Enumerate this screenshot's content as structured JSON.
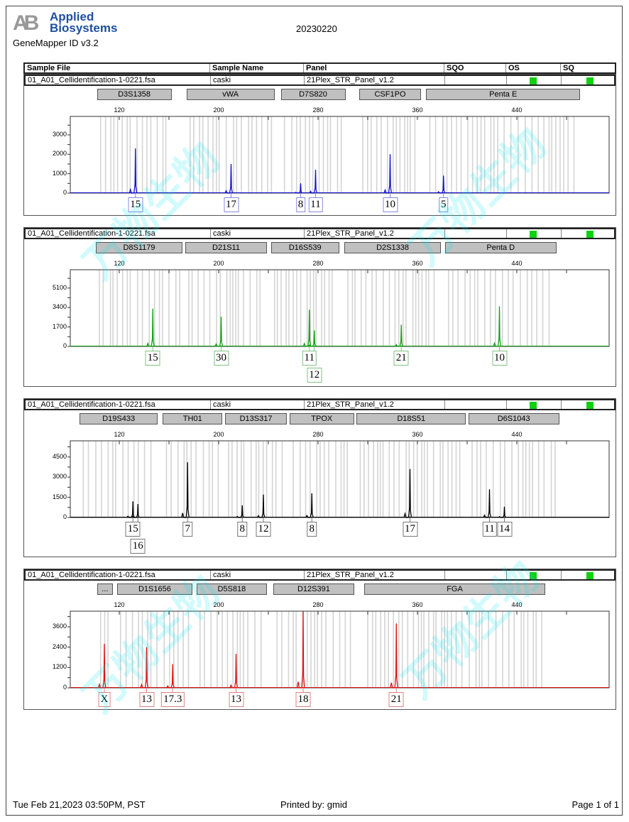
{
  "header": {
    "brand": "Applied Biosystems",
    "software": "GeneMapper ID v3.2",
    "run_name": "20230220",
    "watermark": "万物生物"
  },
  "table_headers": [
    "Sample File",
    "Sample Name",
    "Panel",
    "SQO",
    "OS",
    "SQ"
  ],
  "sample": {
    "file": "01_A01_Cellidentification-1-0221.fsa",
    "name": "caski",
    "panel": "21Plex_STR_Panel_v1.2",
    "os_color": "#10d010",
    "sq_color": "#10d010"
  },
  "footer": {
    "datetime": "Tue Feb 21,2023 03:50PM, PST",
    "printed_by": "Printed by: gmid",
    "page": "Page 1 of 1"
  },
  "chart_data": [
    {
      "type": "line",
      "dye_color": "#1010d0",
      "label_border": "#8888e0",
      "xlim": [
        81,
        514
      ],
      "x_ticks": [
        120,
        200,
        280,
        360,
        440
      ],
      "ylim": [
        0,
        3950
      ],
      "y_ticks": [
        0,
        1000,
        2000,
        3000
      ],
      "loci": [
        {
          "name": "D3S1358",
          "range": [
            102,
            162
          ]
        },
        {
          "name": "vWA",
          "range": [
            174,
            245
          ]
        },
        {
          "name": "D7S820",
          "range": [
            250,
            302
          ]
        },
        {
          "name": "CSF1PO",
          "range": [
            313,
            363
          ]
        },
        {
          "name": "Penta E",
          "range": [
            367,
            491
          ]
        }
      ],
      "peaks": [
        {
          "bp": 133,
          "rfu": 2300,
          "allele": "15"
        },
        {
          "bp": 210,
          "rfu": 1500,
          "allele": "17"
        },
        {
          "bp": 266,
          "rfu": 500,
          "allele": "8"
        },
        {
          "bp": 278,
          "rfu": 1200,
          "allele": "11"
        },
        {
          "bp": 338,
          "rfu": 2000,
          "allele": "10"
        },
        {
          "bp": 381,
          "rfu": 900,
          "allele": "5"
        }
      ]
    },
    {
      "type": "line",
      "dye_color": "#10a010",
      "label_border": "#80c080",
      "xlim": [
        81,
        514
      ],
      "x_ticks": [
        120,
        200,
        280,
        360,
        440
      ],
      "ylim": [
        0,
        6700
      ],
      "y_ticks": [
        0,
        1700,
        3400,
        5100
      ],
      "loci": [
        {
          "name": "D8S1179",
          "range": [
            101,
            171
          ]
        },
        {
          "name": "D21S11",
          "range": [
            173,
            239
          ]
        },
        {
          "name": "D16S539",
          "range": [
            242,
            297
          ]
        },
        {
          "name": "D2S1338",
          "range": [
            301,
            379
          ]
        },
        {
          "name": "Penta D",
          "range": [
            382,
            472
          ]
        }
      ],
      "peaks": [
        {
          "bp": 147,
          "rfu": 3300,
          "allele": "15"
        },
        {
          "bp": 202,
          "rfu": 2600,
          "allele": "30"
        },
        {
          "bp": 273,
          "rfu": 3200,
          "allele": "11"
        },
        {
          "bp": 277,
          "rfu": 1400,
          "allele": "12"
        },
        {
          "bp": 347,
          "rfu": 1900,
          "allele": "21"
        },
        {
          "bp": 426,
          "rfu": 3500,
          "allele": "10"
        }
      ]
    },
    {
      "type": "line",
      "dye_color": "#000000",
      "label_border": "#777777",
      "xlim": [
        81,
        514
      ],
      "x_ticks": [
        120,
        200,
        280,
        360,
        440
      ],
      "ylim": [
        0,
        5700
      ],
      "y_ticks": [
        0,
        1500,
        3000,
        4500
      ],
      "loci": [
        {
          "name": "D19S433",
          "range": [
            88,
            151
          ]
        },
        {
          "name": "TH01",
          "range": [
            155,
            203
          ]
        },
        {
          "name": "D13S317",
          "range": [
            205,
            255
          ]
        },
        {
          "name": "TPOX",
          "range": [
            257,
            309
          ]
        },
        {
          "name": "D18S51",
          "range": [
            311,
            399
          ]
        },
        {
          "name": "D6S1043",
          "range": [
            401,
            474
          ]
        }
      ],
      "peaks": [
        {
          "bp": 131,
          "rfu": 1200,
          "allele": "15"
        },
        {
          "bp": 135,
          "rfu": 1000,
          "allele": "16"
        },
        {
          "bp": 175,
          "rfu": 4100,
          "allele": "7"
        },
        {
          "bp": 219,
          "rfu": 900,
          "allele": "8"
        },
        {
          "bp": 236,
          "rfu": 1700,
          "allele": "12"
        },
        {
          "bp": 275,
          "rfu": 1800,
          "allele": "8"
        },
        {
          "bp": 354,
          "rfu": 3600,
          "allele": "17"
        },
        {
          "bp": 418,
          "rfu": 2100,
          "allele": "11"
        },
        {
          "bp": 430,
          "rfu": 800,
          "allele": "14"
        }
      ]
    },
    {
      "type": "line",
      "dye_color": "#e01010",
      "label_border": "#e08080",
      "xlim": [
        81,
        514
      ],
      "x_ticks": [
        120,
        200,
        280,
        360,
        440
      ],
      "ylim": [
        0,
        4520
      ],
      "y_ticks": [
        0,
        1200,
        2400,
        3600
      ],
      "loci": [
        {
          "name": "...",
          "range": [
            102,
            115
          ]
        },
        {
          "name": "D1S1656",
          "range": [
            118,
            179
          ]
        },
        {
          "name": "D5S818",
          "range": [
            182,
            239
          ]
        },
        {
          "name": "D12S391",
          "range": [
            244,
            309
          ]
        },
        {
          "name": "FGA",
          "range": [
            317,
            463
          ]
        }
      ],
      "peaks": [
        {
          "bp": 108,
          "rfu": 2600,
          "allele": "X"
        },
        {
          "bp": 142,
          "rfu": 2400,
          "allele": "13"
        },
        {
          "bp": 163,
          "rfu": 1400,
          "allele": "17.3"
        },
        {
          "bp": 214,
          "rfu": 2000,
          "allele": "13"
        },
        {
          "bp": 268,
          "rfu": 4500,
          "allele": "18"
        },
        {
          "bp": 343,
          "rfu": 3800,
          "allele": "21"
        }
      ]
    }
  ]
}
